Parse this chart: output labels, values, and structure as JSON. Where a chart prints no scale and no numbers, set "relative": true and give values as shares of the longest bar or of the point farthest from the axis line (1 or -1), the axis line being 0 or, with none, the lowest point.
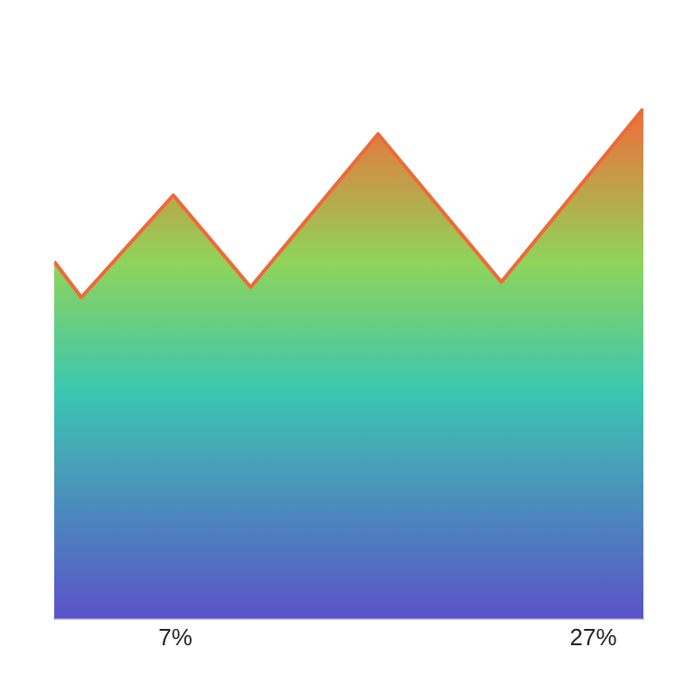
{
  "chart_data": {
    "type": "area",
    "relative": true,
    "x": [
      1.2,
      2.5,
      6.9,
      10.6,
      16.7,
      22.6,
      29.4
    ],
    "xlim": [
      1.2,
      29.4
    ],
    "xticks": [
      {
        "value": 7,
        "label": "7%"
      },
      {
        "value": 27,
        "label": "27%"
      }
    ],
    "series": [
      {
        "color": "#ee6a35",
        "values": [
          0.7,
          0.63,
          0.83,
          0.65,
          0.95,
          0.66,
          1
        ]
      }
    ],
    "grid": false,
    "legend": false
  }
}
